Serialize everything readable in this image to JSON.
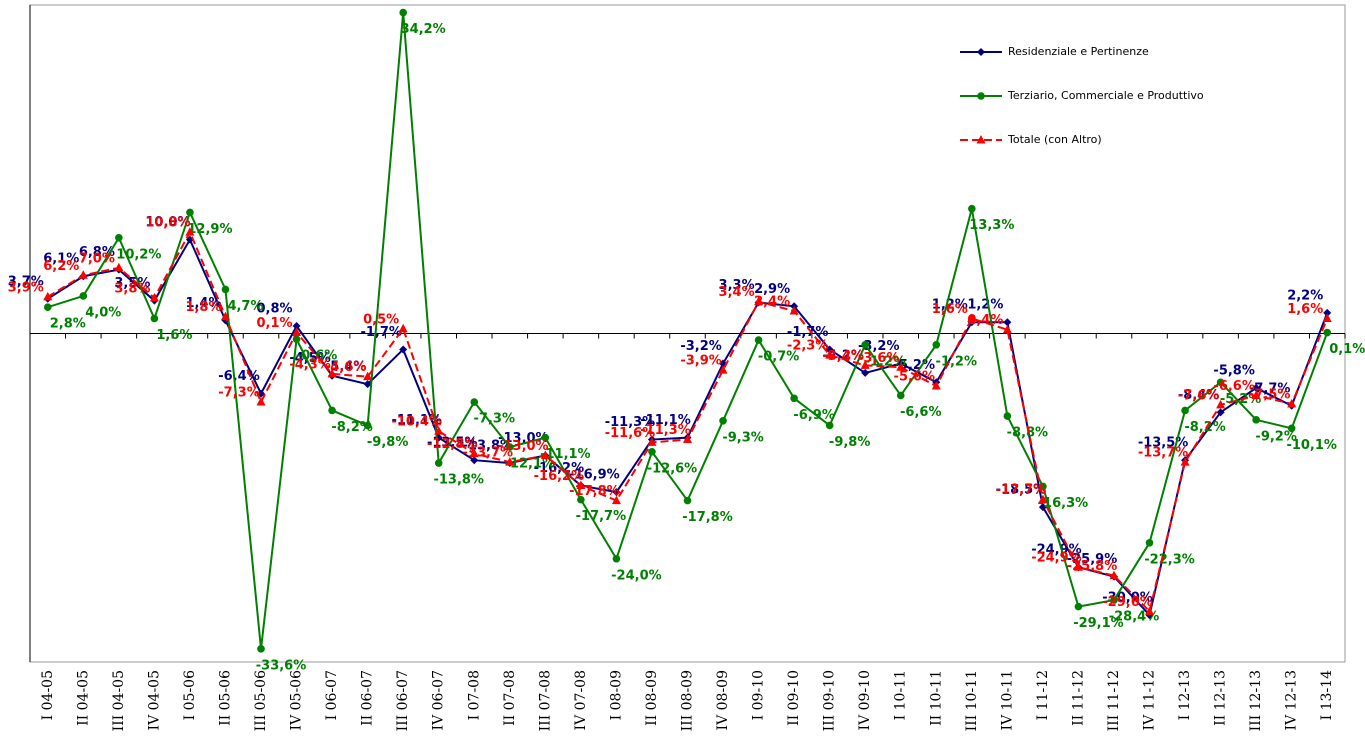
{
  "chart_data": {
    "type": "line",
    "categories": [
      "I 04-05",
      "II 04-05",
      "III 04-05",
      "IV 04-05",
      "I 05-06",
      "II 05-06",
      "III 05-06",
      "IV 05-06",
      "I 06-07",
      "II 06-07",
      "III 06-07",
      "IV 06-07",
      "I 07-08",
      "II 07-08",
      "III 07-08",
      "IV 07-08",
      "I 08-09",
      "II 08-09",
      "III 08-09",
      "IV 08-09",
      "I 09-10",
      "II 09-10",
      "III 09-10",
      "IV 09-10",
      "I 10-11",
      "II 10-11",
      "III 10-11",
      "IV 10-11",
      "I 11-12",
      "II 11-12",
      "III 11-12",
      "IV 11-12",
      "I 12-13",
      "II 12-13",
      "III 12-13",
      "IV 12-13",
      "I 13-14"
    ],
    "ylim": [
      -35,
      35
    ],
    "legend": "top-right",
    "series": [
      {
        "name": "Residenziale e Pertinenze",
        "color": "#000080",
        "marker": "diamond",
        "dash": false,
        "values": [
          3.7,
          6.1,
          6.8,
          3.5,
          10.0,
          1.4,
          -6.4,
          0.8,
          -4.5,
          -5.4,
          -1.7,
          -11.1,
          -13.5,
          -13.8,
          -13.0,
          -16.2,
          -16.9,
          -11.3,
          -11.1,
          -3.2,
          3.3,
          2.9,
          -1.7,
          -4.2,
          -3.2,
          -5.2,
          1.2,
          1.2,
          -18.5,
          -24.9,
          -25.9,
          -30.0,
          -13.5,
          -8.4,
          -5.8,
          -7.7,
          2.2
        ],
        "value_labels": [
          "3,7%",
          "6,1%",
          "6,8%",
          "3,5%",
          "10,0%",
          "1,4%",
          "-6,4%",
          "0,8%",
          "-4,5%",
          "-5,4%",
          "-1,7%",
          "-11,1%",
          "-13,5%",
          "-13,8%",
          "-13,0%",
          "-16,2%",
          "-16,9%",
          "-11,3%",
          "-11,1%",
          "-3,2%",
          "3,3%",
          "2,9%",
          "-1,7%",
          "-4,2%",
          "-3,2%",
          "-5,2%",
          "1,2%",
          "1,2%",
          "-18,5%",
          "-24,9%",
          "-25,9%",
          "-30,0%",
          "-13,5%",
          "-8,4%",
          "-5,8%",
          "-7,7%",
          "2,2%"
        ]
      },
      {
        "name": "Terziario, Commerciale e Produttivo",
        "color": "#008000",
        "marker": "circle",
        "dash": false,
        "values": [
          2.8,
          4.0,
          10.2,
          1.6,
          12.9,
          4.7,
          -33.6,
          -0.6,
          -8.2,
          -9.8,
          34.2,
          -13.8,
          -7.3,
          -12.1,
          -11.1,
          -17.7,
          -24.0,
          -12.6,
          -17.8,
          -9.3,
          -0.7,
          -6.9,
          -9.8,
          -1.2,
          -6.6,
          -1.2,
          13.3,
          -8.8,
          -16.3,
          -29.1,
          -28.4,
          -22.3,
          -8.2,
          -5.2,
          -9.2,
          -10.1,
          0.1
        ],
        "value_labels": [
          "2,8%",
          "4,0%",
          "10,2%",
          "1,6%",
          "12,9%",
          "4,7%",
          "-33,6%",
          "-0,6%",
          "-8,2%",
          "-9,8%",
          "34,2%",
          "-13,8%",
          "-7,3%",
          "-12,1%",
          "-11,1%",
          "-17,7%",
          "-24,0%",
          "-12,6%",
          "-17,8%",
          "-9,3%",
          "-0,7%",
          "-6,9%",
          "-9,8%",
          "-1,2%",
          "-6,6%",
          "-1,2%",
          "13,3%",
          "-8,8%",
          "-16,3%",
          "-29,1%",
          "-28,4%",
          "-22,3%",
          "-8,2%",
          "-5,2%",
          "-9,2%",
          "-10,1%",
          "0,1%"
        ]
      },
      {
        "name": "Totale (con Altro)",
        "color": "#ff0000",
        "marker": "triangle",
        "dash": true,
        "values": [
          3.9,
          6.2,
          7.0,
          3.8,
          10.8,
          1.8,
          -7.3,
          0.1,
          -4.3,
          -4.6,
          0.5,
          -10.4,
          -12.8,
          -13.7,
          -13.0,
          -16.2,
          -17.8,
          -11.6,
          -11.3,
          -3.9,
          3.4,
          2.4,
          -2.3,
          -3.4,
          -3.6,
          -5.6,
          1.6,
          0.4,
          -17.7,
          -24.9,
          -25.8,
          -29.6,
          -13.7,
          -7.6,
          -6.6,
          -7.5,
          1.6
        ],
        "value_labels": [
          "3,9%",
          "6,2%",
          "7,0%",
          "3,8%",
          "10,8%",
          "1,8%",
          "-7,3%",
          "0,1%",
          "-4,3%",
          "-4,6%",
          "0,5%",
          "-10,4%",
          "-12,8%",
          "-13,7%",
          "-13,0%",
          "-16,2%",
          "-17,8%",
          "-11,6%",
          "-11,3%",
          "-3,9%",
          "3,4%",
          "2,4%",
          "-2,3%",
          "-3,4%",
          "-3,6%",
          "-5,6%",
          "1,6%",
          "0,4%",
          "-17,7%",
          "-24,9%",
          "-25,8%",
          "-29,6%",
          "-13,7%",
          "-7,6%",
          "-6,6%",
          "-7,5%",
          "1,6%"
        ]
      }
    ]
  }
}
